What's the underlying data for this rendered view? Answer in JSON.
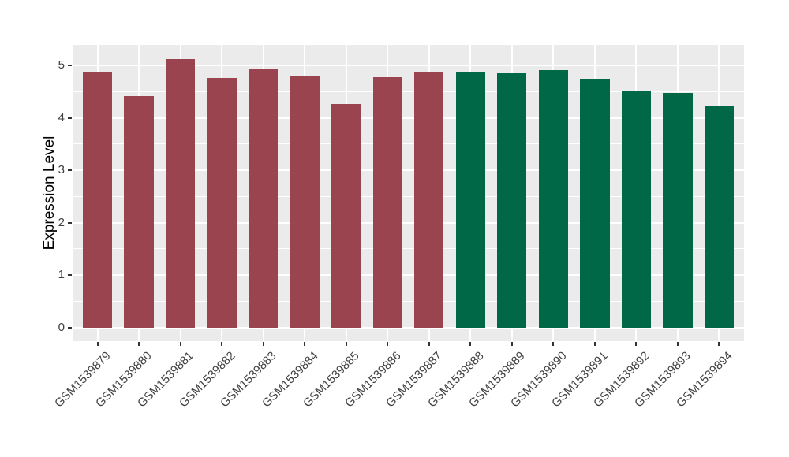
{
  "chart_data": {
    "type": "bar",
    "title": "",
    "xlabel": "",
    "ylabel": "Expression Level",
    "categories": [
      "GSM1539879",
      "GSM1539880",
      "GSM1539881",
      "GSM1539882",
      "GSM1539883",
      "GSM1539884",
      "GSM1539885",
      "GSM1539886",
      "GSM1539887",
      "GSM1539888",
      "GSM1539889",
      "GSM1539890",
      "GSM1539891",
      "GSM1539892",
      "GSM1539893",
      "GSM1539894"
    ],
    "values": [
      4.88,
      4.41,
      5.13,
      4.76,
      4.93,
      4.79,
      4.27,
      4.77,
      4.89,
      4.88,
      4.85,
      4.91,
      4.74,
      4.51,
      4.47,
      4.22
    ],
    "color_groups": [
      {
        "name": "group-1",
        "color": "#9A4450",
        "from": 0,
        "to": 8
      },
      {
        "name": "group-2",
        "color": "#006747",
        "from": 9,
        "to": 15
      }
    ],
    "y_ticks": [
      0,
      1,
      2,
      3,
      4,
      5
    ],
    "y_minor_ticks": [
      0.5,
      1.5,
      2.5,
      3.5,
      4.5
    ],
    "ylim": [
      -0.26,
      5.39
    ],
    "grid": "major and minor horizontal + major vertical, white on gray",
    "legend": "none",
    "panel_bg": "#EBEBEB",
    "grid_color": "#FFFFFF",
    "tick_text_color": "#404040",
    "axis_title_color": "#000000",
    "tick_mark_color": "#333333"
  }
}
